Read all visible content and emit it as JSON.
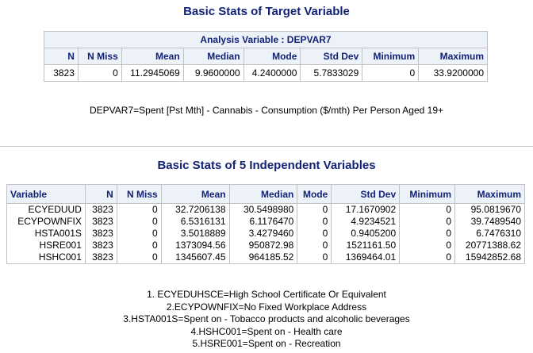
{
  "section1": {
    "title": "Basic Stats of Target Variable",
    "caption": "Analysis Variable : DEPVAR7",
    "headers": [
      "N",
      "N Miss",
      "Mean",
      "Median",
      "Mode",
      "Std Dev",
      "Minimum",
      "Maximum"
    ],
    "row": [
      "3823",
      "0",
      "11.2945069",
      "9.9600000",
      "4.2400000",
      "5.7833029",
      "0",
      "33.9200000"
    ],
    "note": "DEPVAR7=Spent [Pst Mth] - Cannabis - Consumption ($/mth) Per Person Aged 19+"
  },
  "section2": {
    "title": "Basic Stats of 5 Independent Variables",
    "headers": [
      "Variable",
      "N",
      "N Miss",
      "Mean",
      "Median",
      "Mode",
      "Std Dev",
      "Minimum",
      "Maximum"
    ],
    "columns": {
      "variable": [
        "ECYEDUUD",
        "ECYPOWNFIX",
        "HSTA001S",
        "HSRE001",
        "HSHC001"
      ],
      "n": [
        "3823",
        "3823",
        "3823",
        "3823",
        "3823"
      ],
      "nmiss": [
        "0",
        "0",
        "0",
        "0",
        "0"
      ],
      "mean": [
        "32.7206138",
        "6.5316131",
        "3.5018889",
        "1373094.56",
        "1345607.45"
      ],
      "median": [
        "30.5498980",
        "6.1176470",
        "3.4279460",
        "950872.98",
        "964185.52"
      ],
      "mode": [
        "0",
        "0",
        "0",
        "0",
        "0"
      ],
      "stddev": [
        "17.1670902",
        "4.9234521",
        "0.9405200",
        "1521161.50",
        "1369464.01"
      ],
      "minimum": [
        "0",
        "0",
        "0",
        "0",
        "0"
      ],
      "maximum": [
        "95.0819670",
        "39.7489540",
        "6.7476310",
        "20771388.62",
        "15942852.68"
      ]
    },
    "footnotes": [
      "1. ECYEDUHSCE=High School Certificate Or Equivalent",
      "2.ECYPOWNFIX=No Fixed Workplace Address",
      "3.HSTA001S=Spent on - Tobacco products and alcoholic beverages",
      "4.HSHC001=Spent on - Health care",
      "5.HSRE001=Spent on - Recreation"
    ]
  }
}
